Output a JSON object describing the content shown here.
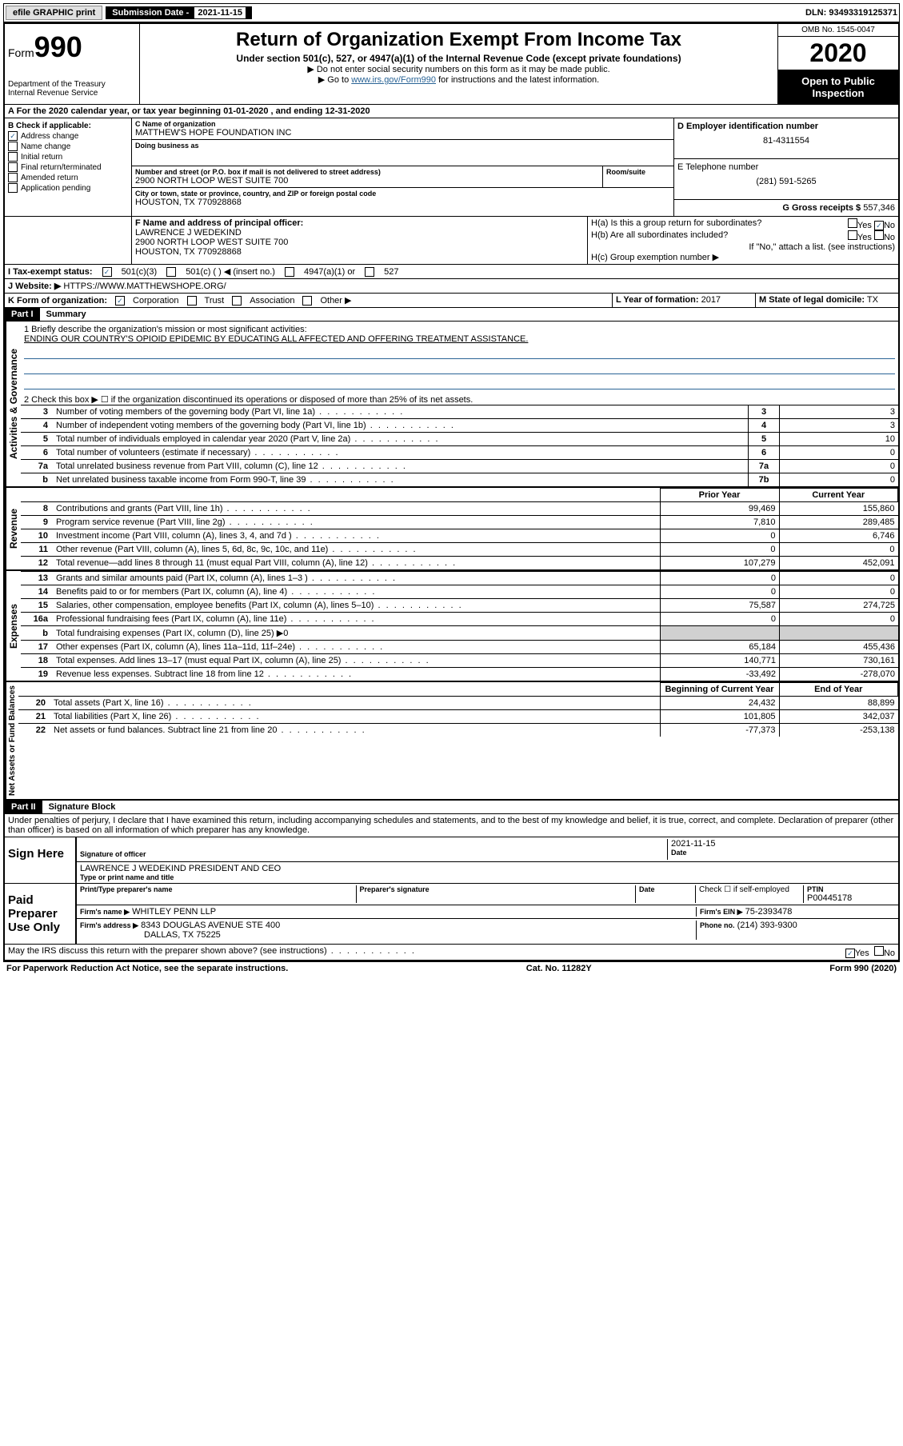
{
  "top_bar": {
    "efile": "efile GRAPHIC print",
    "sub_label": "Submission Date -",
    "sub_date": "2021-11-15",
    "dln": "DLN: 93493319125371"
  },
  "header": {
    "form_label": "Form",
    "form_num": "990",
    "dept": "Department of the Treasury\nInternal Revenue Service",
    "title": "Return of Organization Exempt From Income Tax",
    "subtitle": "Under section 501(c), 527, or 4947(a)(1) of the Internal Revenue Code (except private foundations)",
    "note1": "▶ Do not enter social security numbers on this form as it may be made public.",
    "note2_pre": "▶ Go to ",
    "note2_link": "www.irs.gov/Form990",
    "note2_post": " for instructions and the latest information.",
    "omb": "OMB No. 1545-0047",
    "year": "2020",
    "open": "Open to Public Inspection"
  },
  "section_A": "A For the 2020 calendar year, or tax year beginning 01-01-2020    , and ending 12-31-2020",
  "block_B": {
    "label": "B Check if applicable:",
    "items": [
      {
        "checked": true,
        "label": "Address change"
      },
      {
        "checked": false,
        "label": "Name change"
      },
      {
        "checked": false,
        "label": "Initial return"
      },
      {
        "checked": false,
        "label": "Final return/terminated"
      },
      {
        "checked": false,
        "label": "Amended return"
      },
      {
        "checked": false,
        "label": "Application pending"
      }
    ]
  },
  "block_C": {
    "name_label": "C Name of organization",
    "name": "MATTHEW'S HOPE FOUNDATION INC",
    "dba_label": "Doing business as",
    "dba": "",
    "street_label": "Number and street (or P.O. box if mail is not delivered to street address)",
    "room_label": "Room/suite",
    "street": "2900 NORTH LOOP WEST SUITE 700",
    "city_label": "City or town, state or province, country, and ZIP or foreign postal code",
    "city": "HOUSTON, TX  770928868"
  },
  "block_D": {
    "label": "D Employer identification number",
    "value": "81-4311554"
  },
  "block_E": {
    "label": "E Telephone number",
    "value": "(281) 591-5265"
  },
  "block_G": {
    "label": "G Gross receipts $",
    "value": "557,346"
  },
  "block_F": {
    "label": "F Name and address of principal officer:",
    "name": "LAWRENCE J WEDEKIND",
    "addr1": "2900 NORTH LOOP WEST SUITE 700",
    "addr2": "HOUSTON, TX  770928868"
  },
  "block_H": {
    "a_label": "H(a)  Is this a group return for subordinates?",
    "a_yes": "Yes",
    "a_no": "No",
    "b_label": "H(b)  Are all subordinates included?",
    "b_yes": "Yes",
    "b_no": "No",
    "b_note": "If \"No,\" attach a list. (see instructions)",
    "c_label": "H(c)  Group exemption number ▶"
  },
  "block_I": {
    "label": "I Tax-exempt status:",
    "opt1": "501(c)(3)",
    "opt2": "501(c) (   ) ◀ (insert no.)",
    "opt3": "4947(a)(1) or",
    "opt4": "527"
  },
  "block_J": {
    "label": "J Website: ▶",
    "value": "HTTPS://WWW.MATTHEWSHOPE.ORG/"
  },
  "block_K": {
    "label": "K Form of organization:",
    "opts": [
      "Corporation",
      "Trust",
      "Association",
      "Other ▶"
    ]
  },
  "block_L": {
    "label": "L Year of formation:",
    "value": "2017"
  },
  "block_M": {
    "label": "M State of legal domicile:",
    "value": "TX"
  },
  "part1": {
    "header": "Part I",
    "title": "Summary",
    "line1_label": "1   Briefly describe the organization's mission or most significant activities:",
    "mission": "ENDING OUR COUNTRY'S OPIOID EPIDEMIC BY EDUCATING ALL AFFECTED AND OFFERING TREATMENT ASSISTANCE.",
    "line2": "2    Check this box ▶ ☐  if the organization discontinued its operations or disposed of more than 25% of its net assets.",
    "vertical_gov": "Activities & Governance",
    "vertical_rev": "Revenue",
    "vertical_exp": "Expenses",
    "vertical_net": "Net Assets or Fund Balances",
    "gov_rows": [
      {
        "n": "3",
        "label": "Number of voting members of the governing body (Part VI, line 1a)",
        "box": "3",
        "val": "3"
      },
      {
        "n": "4",
        "label": "Number of independent voting members of the governing body (Part VI, line 1b)",
        "box": "4",
        "val": "3"
      },
      {
        "n": "5",
        "label": "Total number of individuals employed in calendar year 2020 (Part V, line 2a)",
        "box": "5",
        "val": "10"
      },
      {
        "n": "6",
        "label": "Total number of volunteers (estimate if necessary)",
        "box": "6",
        "val": "0"
      },
      {
        "n": "7a",
        "label": "Total unrelated business revenue from Part VIII, column (C), line 12",
        "box": "7a",
        "val": "0"
      },
      {
        "n": "b",
        "label": "Net unrelated business taxable income from Form 990-T, line 39",
        "box": "7b",
        "val": "0"
      }
    ],
    "col_prior": "Prior Year",
    "col_current": "Current Year",
    "rev_rows": [
      {
        "n": "8",
        "label": "Contributions and grants (Part VIII, line 1h)",
        "prior": "99,469",
        "cur": "155,860"
      },
      {
        "n": "9",
        "label": "Program service revenue (Part VIII, line 2g)",
        "prior": "7,810",
        "cur": "289,485"
      },
      {
        "n": "10",
        "label": "Investment income (Part VIII, column (A), lines 3, 4, and 7d )",
        "prior": "0",
        "cur": "6,746"
      },
      {
        "n": "11",
        "label": "Other revenue (Part VIII, column (A), lines 5, 6d, 8c, 9c, 10c, and 11e)",
        "prior": "0",
        "cur": "0"
      },
      {
        "n": "12",
        "label": "Total revenue—add lines 8 through 11 (must equal Part VIII, column (A), line 12)",
        "prior": "107,279",
        "cur": "452,091"
      }
    ],
    "exp_rows": [
      {
        "n": "13",
        "label": "Grants and similar amounts paid (Part IX, column (A), lines 1–3 )",
        "prior": "0",
        "cur": "0"
      },
      {
        "n": "14",
        "label": "Benefits paid to or for members (Part IX, column (A), line 4)",
        "prior": "0",
        "cur": "0"
      },
      {
        "n": "15",
        "label": "Salaries, other compensation, employee benefits (Part IX, column (A), lines 5–10)",
        "prior": "75,587",
        "cur": "274,725"
      },
      {
        "n": "16a",
        "label": "Professional fundraising fees (Part IX, column (A), line 11e)",
        "prior": "0",
        "cur": "0"
      },
      {
        "n": "b",
        "label": "Total fundraising expenses (Part IX, column (D), line 25) ▶0",
        "prior": "",
        "cur": "",
        "shaded": true
      },
      {
        "n": "17",
        "label": "Other expenses (Part IX, column (A), lines 11a–11d, 11f–24e)",
        "prior": "65,184",
        "cur": "455,436"
      },
      {
        "n": "18",
        "label": "Total expenses. Add lines 13–17 (must equal Part IX, column (A), line 25)",
        "prior": "140,771",
        "cur": "730,161"
      },
      {
        "n": "19",
        "label": "Revenue less expenses. Subtract line 18 from line 12",
        "prior": "-33,492",
        "cur": "-278,070"
      }
    ],
    "col_begin": "Beginning of Current Year",
    "col_end": "End of Year",
    "net_rows": [
      {
        "n": "20",
        "label": "Total assets (Part X, line 16)",
        "prior": "24,432",
        "cur": "88,899"
      },
      {
        "n": "21",
        "label": "Total liabilities (Part X, line 26)",
        "prior": "101,805",
        "cur": "342,037"
      },
      {
        "n": "22",
        "label": "Net assets or fund balances. Subtract line 21 from line 20",
        "prior": "-77,373",
        "cur": "-253,138"
      }
    ]
  },
  "part2": {
    "header": "Part II",
    "title": "Signature Block",
    "perjury": "Under penalties of perjury, I declare that I have examined this return, including accompanying schedules and statements, and to the best of my knowledge and belief, it is true, correct, and complete. Declaration of preparer (other than officer) is based on all information of which preparer has any knowledge.",
    "sign_here": "Sign Here",
    "sig_officer": "Signature of officer",
    "sig_date_label": "Date",
    "sig_date": "2021-11-15",
    "officer_name": "LAWRENCE J WEDEKIND  PRESIDENT AND CEO",
    "type_name": "Type or print name and title",
    "paid_prep": "Paid Preparer Use Only",
    "prep_name_label": "Print/Type preparer's name",
    "prep_sig_label": "Preparer's signature",
    "prep_date_label": "Date",
    "check_self": "Check ☐ if self-employed",
    "ptin_label": "PTIN",
    "ptin": "P00445178",
    "firm_name_label": "Firm's name    ▶",
    "firm_name": "WHITLEY PENN LLP",
    "firm_ein_label": "Firm's EIN ▶",
    "firm_ein": "75-2393478",
    "firm_addr_label": "Firm's address ▶",
    "firm_addr1": "8343 DOUGLAS AVENUE STE 400",
    "firm_addr2": "DALLAS, TX  75225",
    "phone_label": "Phone no.",
    "phone": "(214) 393-9300",
    "discuss": "May the IRS discuss this return with the preparer shown above? (see instructions)",
    "discuss_yes": "Yes",
    "discuss_no": "No"
  },
  "footer": {
    "paperwork": "For Paperwork Reduction Act Notice, see the separate instructions.",
    "cat": "Cat. No. 11282Y",
    "form": "Form 990 (2020)"
  }
}
